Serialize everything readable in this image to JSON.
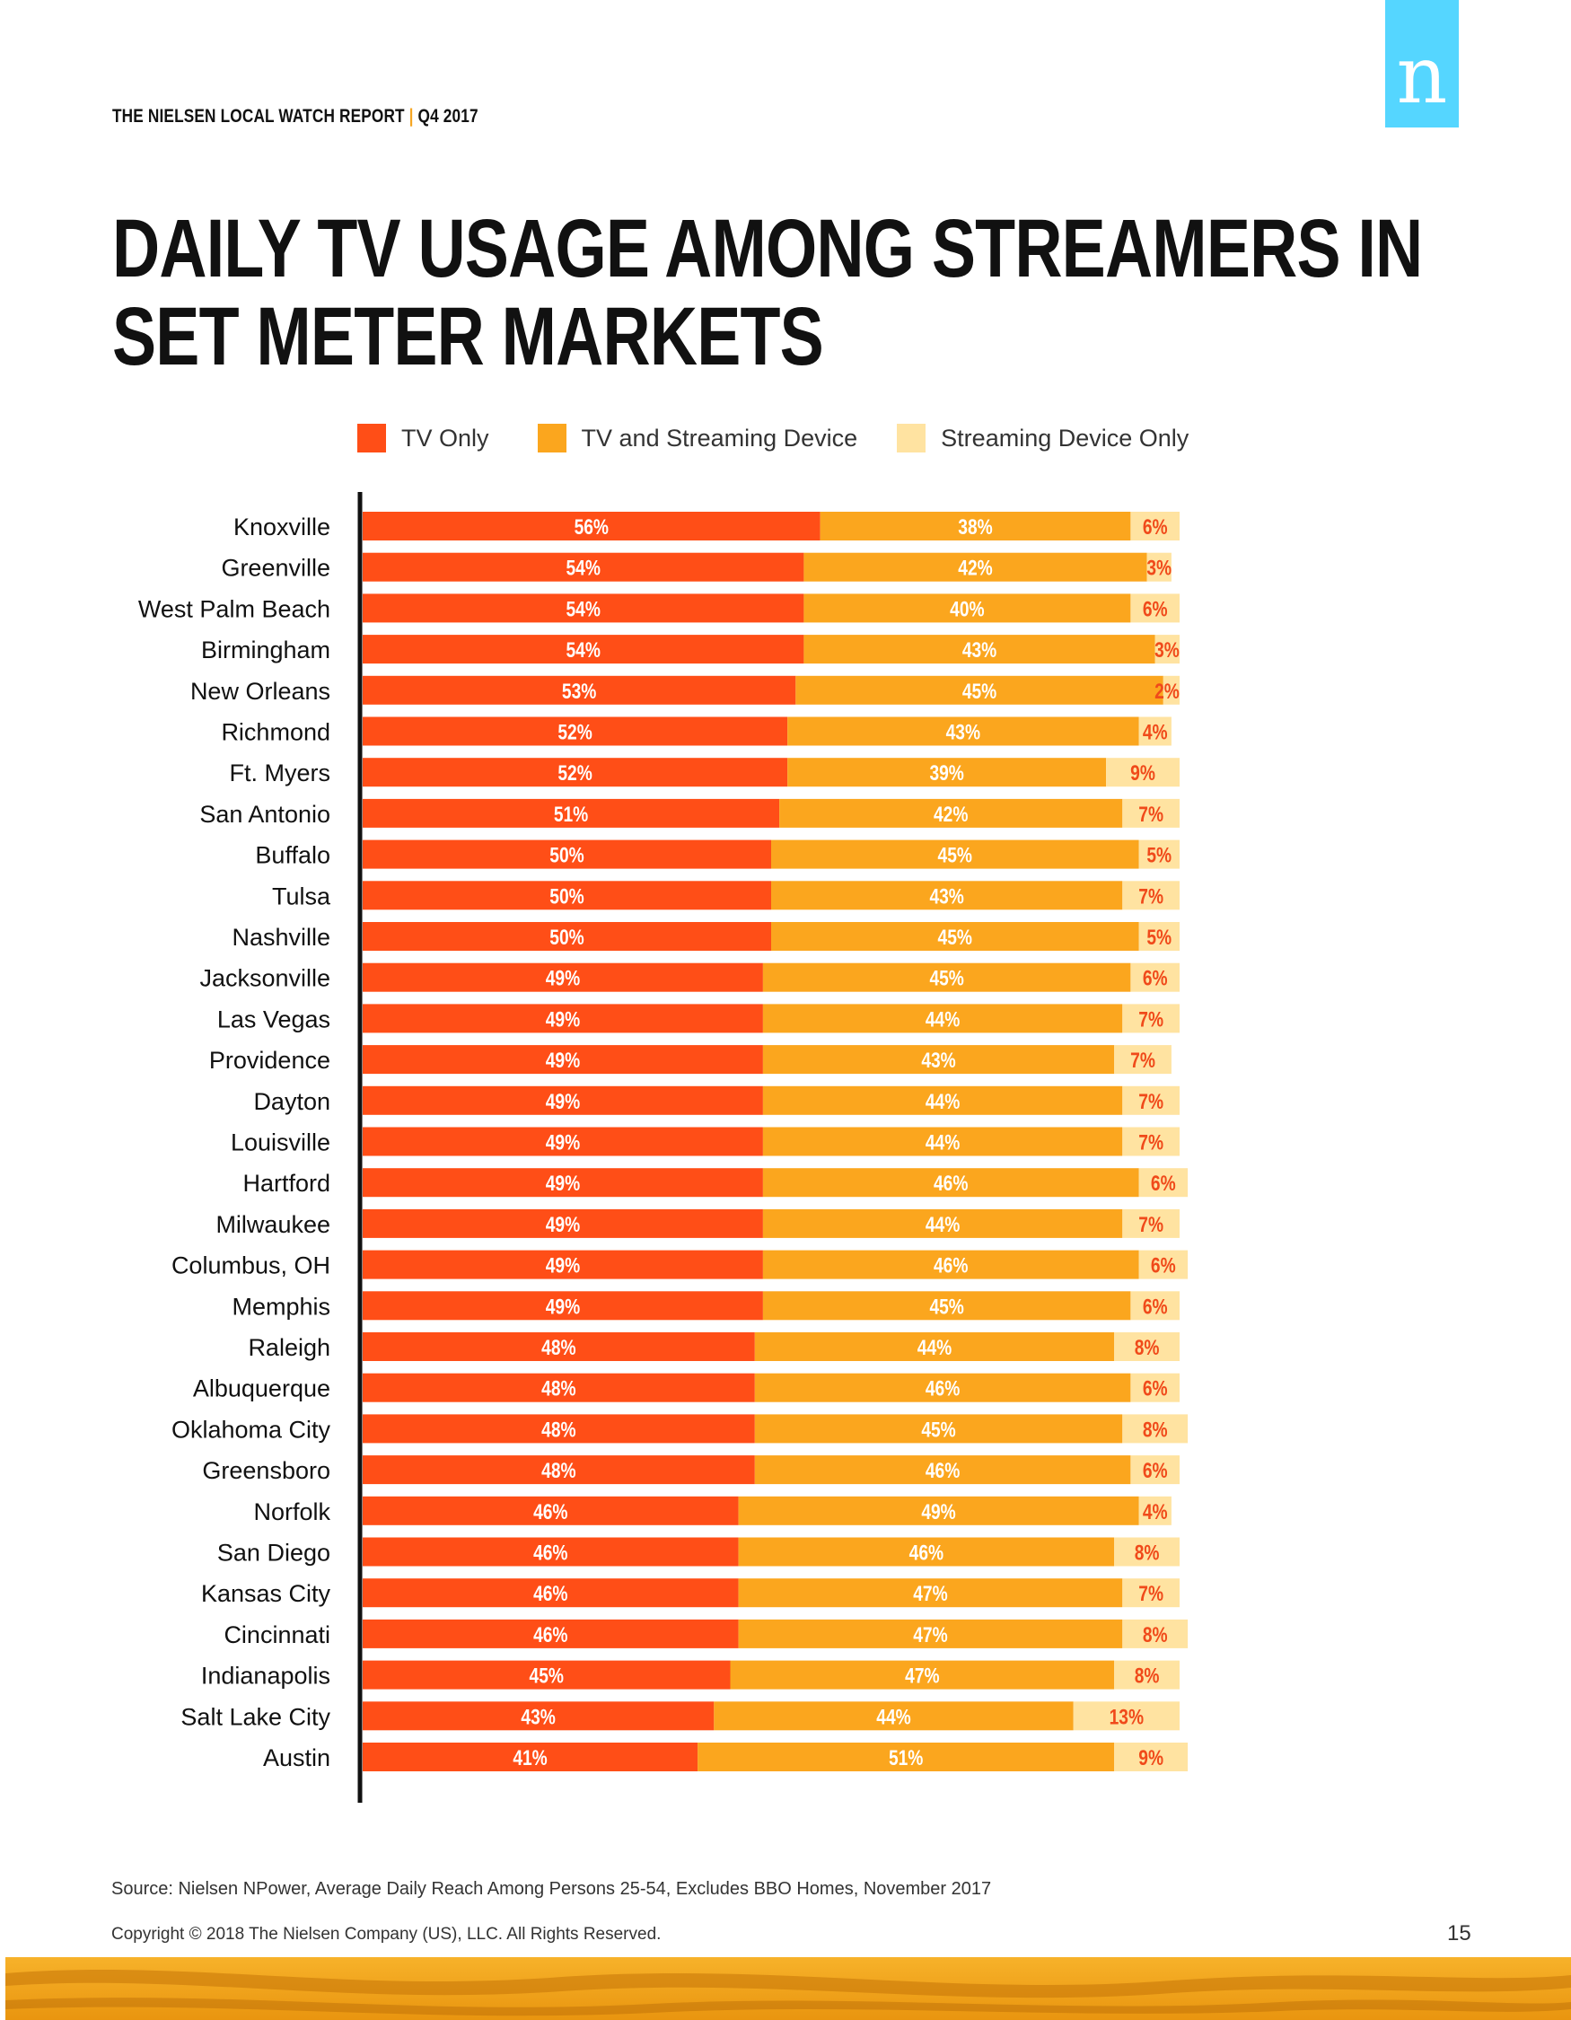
{
  "header": {
    "report": "THE NIELSEN LOCAL WATCH REPORT",
    "separator": "|",
    "period": "Q4 2017",
    "logo_letter": "n"
  },
  "page_title": "DAILY TV USAGE AMONG STREAMERS IN SET METER MARKETS",
  "colors": {
    "tv_only": "#ff4e17",
    "tv_and_streaming": "#fba61e",
    "streaming_only": "#ffe3a1",
    "label_dark": "#f04a1a",
    "logo_bg": "#55d6ff"
  },
  "chart_data": {
    "type": "bar",
    "orientation": "horizontal",
    "stacked": true,
    "title": "DAILY TV USAGE AMONG STREAMERS IN SET METER MARKETS",
    "xlabel": "",
    "ylabel": "",
    "xlim": [
      0,
      100
    ],
    "legend_position": "top",
    "categories": [
      "Knoxville",
      "Greenville",
      "West Palm Beach",
      "Birmingham",
      "New Orleans",
      "Richmond",
      "Ft. Myers",
      "San Antonio",
      "Buffalo",
      "Tulsa",
      "Nashville",
      "Jacksonville",
      "Las Vegas",
      "Providence",
      "Dayton",
      "Louisville",
      "Hartford",
      "Milwaukee",
      "Columbus, OH",
      "Memphis",
      "Raleigh",
      "Albuquerque",
      "Oklahoma City",
      "Greensboro",
      "Norfolk",
      "San Diego",
      "Kansas City",
      "Cincinnati",
      "Indianapolis",
      "Salt Lake City",
      "Austin"
    ],
    "series": [
      {
        "name": "TV Only",
        "values": [
          56,
          54,
          54,
          54,
          53,
          52,
          52,
          51,
          50,
          50,
          50,
          49,
          49,
          49,
          49,
          49,
          49,
          49,
          49,
          49,
          48,
          48,
          48,
          48,
          46,
          46,
          46,
          46,
          45,
          43,
          41
        ]
      },
      {
        "name": "TV and Streaming Device",
        "values": [
          38,
          42,
          40,
          43,
          45,
          43,
          39,
          42,
          45,
          43,
          45,
          45,
          44,
          43,
          44,
          44,
          46,
          44,
          46,
          45,
          44,
          46,
          45,
          46,
          49,
          46,
          47,
          47,
          47,
          44,
          51
        ]
      },
      {
        "name": "Streaming Device Only",
        "values": [
          6,
          3,
          6,
          3,
          2,
          4,
          9,
          7,
          5,
          7,
          5,
          6,
          7,
          7,
          7,
          7,
          6,
          7,
          6,
          6,
          8,
          6,
          8,
          6,
          4,
          8,
          7,
          8,
          8,
          13,
          9
        ]
      }
    ]
  },
  "footer": {
    "source": "Source: Nielsen NPower, Average Daily Reach Among Persons 25-54, Excludes BBO Homes, November 2017",
    "copyright": "Copyright © 2018 The Nielsen Company (US), LLC. All Rights Reserved.",
    "page_number": "15"
  }
}
